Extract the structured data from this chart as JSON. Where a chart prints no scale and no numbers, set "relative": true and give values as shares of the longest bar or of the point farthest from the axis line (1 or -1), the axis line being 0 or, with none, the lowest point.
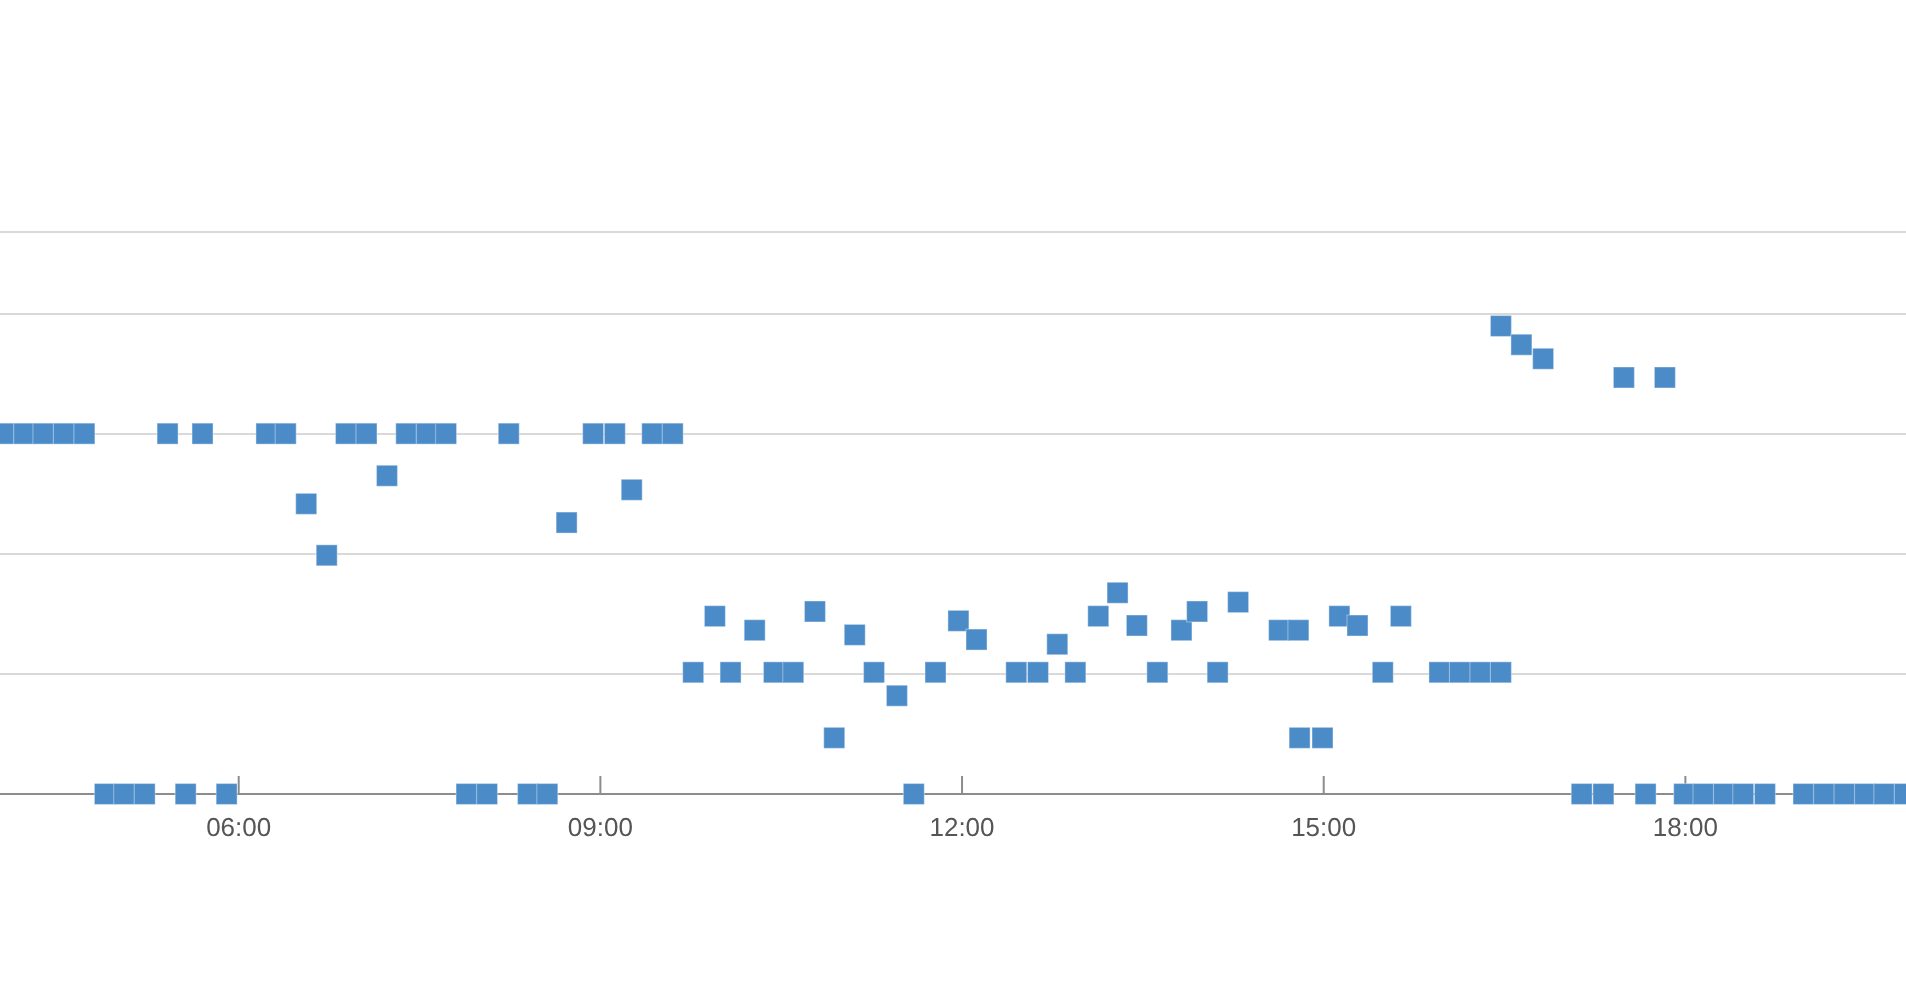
{
  "chart_data": {
    "type": "scatter",
    "relative": true,
    "color": "#4b8bc8",
    "marker": "square",
    "grid": "y",
    "xlim": [
      4.02,
      19.83
    ],
    "xticks": [
      {
        "value": 6,
        "label": "06:00"
      },
      {
        "value": 9,
        "label": "09:00"
      },
      {
        "value": 12,
        "label": "12:00"
      },
      {
        "value": 15,
        "label": "15:00"
      },
      {
        "value": 18,
        "label": "18:00"
      }
    ],
    "x": [
      4.05,
      4.22,
      4.38,
      4.55,
      4.72,
      4.89,
      5.05,
      5.22,
      5.41,
      5.56,
      5.7,
      5.9,
      6.23,
      6.39,
      6.56,
      6.73,
      6.89,
      7.06,
      7.23,
      7.39,
      7.56,
      7.72,
      7.89,
      8.06,
      8.24,
      8.4,
      8.56,
      8.72,
      8.94,
      9.12,
      9.26,
      9.43,
      9.6,
      9.77,
      9.95,
      10.08,
      10.28,
      10.44,
      10.6,
      10.78,
      10.94,
      11.11,
      11.27,
      11.46,
      11.6,
      11.78,
      11.97,
      12.12,
      12.45,
      12.63,
      12.79,
      12.94,
      13.13,
      13.29,
      13.45,
      13.62,
      13.82,
      13.95,
      14.12,
      14.29,
      14.63,
      14.79,
      14.8,
      14.99,
      15.13,
      15.28,
      15.49,
      15.64,
      15.96,
      16.13,
      16.3,
      16.47,
      16.47,
      16.64,
      16.82,
      17.14,
      17.32,
      17.49,
      17.67,
      17.83,
      17.99,
      18.15,
      18.32,
      18.48,
      18.66,
      18.98,
      19.15,
      19.32,
      19.49,
      19.65,
      19.82
    ],
    "values": [
      0.77,
      0.77,
      0.77,
      0.77,
      0.77,
      0,
      0,
      0,
      0.77,
      0,
      0.77,
      0,
      0.77,
      0.77,
      0.62,
      0.51,
      0.77,
      0.77,
      0.68,
      0.77,
      0.77,
      0.77,
      0,
      0,
      0.77,
      0,
      0,
      0.58,
      0.77,
      0.77,
      0.65,
      0.77,
      0.77,
      0.26,
      0.38,
      0.26,
      0.35,
      0.26,
      0.26,
      0.39,
      0.12,
      0.34,
      0.26,
      0.21,
      0,
      0.26,
      0.37,
      0.33,
      0.26,
      0.26,
      0.32,
      0.26,
      0.38,
      0.43,
      0.36,
      0.26,
      0.35,
      0.39,
      0.26,
      0.41,
      0.35,
      0.35,
      0.12,
      0.12,
      0.38,
      0.36,
      0.26,
      0.38,
      0.26,
      0.26,
      0.26,
      0.26,
      1,
      0.96,
      0.93,
      0,
      0,
      0.89,
      0,
      0.89,
      0,
      0,
      0,
      0,
      0,
      0,
      0,
      0,
      0,
      0,
      0
    ]
  }
}
